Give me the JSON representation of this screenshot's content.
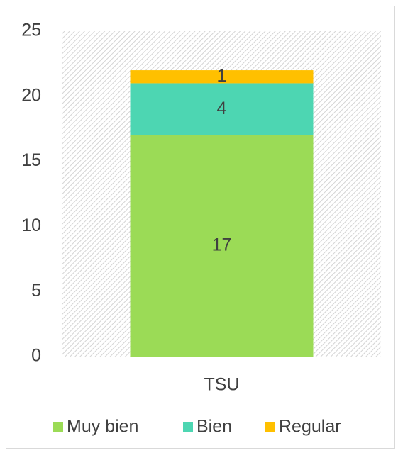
{
  "chart_data": {
    "type": "stacked_bar",
    "categories": [
      "TSU"
    ],
    "series": [
      {
        "name": "Muy bien",
        "color": "#9bdb56",
        "values": [
          17
        ]
      },
      {
        "name": "Bien",
        "color": "#4dd6b2",
        "values": [
          4
        ]
      },
      {
        "name": "Regular",
        "color": "#ffc000",
        "values": [
          1
        ]
      }
    ],
    "ylim": [
      0,
      25
    ],
    "yticks": [
      0,
      5,
      10,
      15,
      20,
      25
    ],
    "legend": "bottom"
  }
}
